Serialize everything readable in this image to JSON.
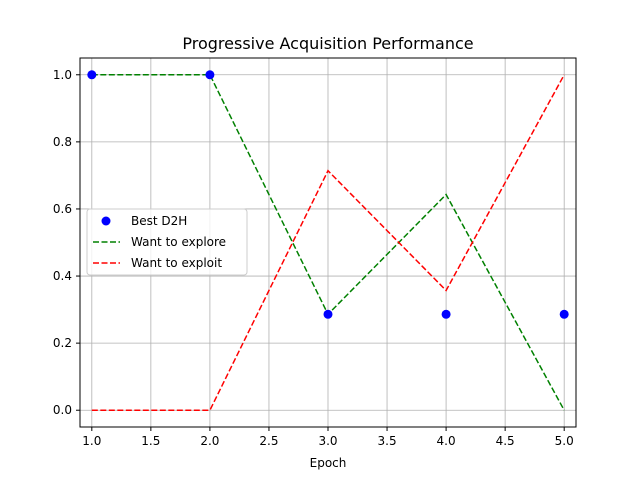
{
  "chart_data": {
    "type": "line",
    "title": "Progressive Acquisition Performance",
    "xlabel": "Epoch",
    "ylabel": "",
    "xlim": [
      0.9,
      5.1
    ],
    "ylim": [
      -0.05,
      1.05
    ],
    "x_ticks": [
      1.0,
      1.5,
      2.0,
      2.5,
      3.0,
      3.5,
      4.0,
      4.5,
      5.0
    ],
    "x_tick_labels": [
      "1.0",
      "1.5",
      "2.0",
      "2.5",
      "3.0",
      "3.5",
      "4.0",
      "4.5",
      "5.0"
    ],
    "y_ticks": [
      0.0,
      0.2,
      0.4,
      0.6,
      0.8,
      1.0
    ],
    "y_tick_labels": [
      "0.0",
      "0.2",
      "0.4",
      "0.6",
      "0.8",
      "1.0"
    ],
    "grid": true,
    "legend_position": "center-left",
    "x": [
      1,
      2,
      3,
      4,
      5
    ],
    "series": [
      {
        "name": "Best D2H",
        "style": "scatter",
        "color": "#0000ff",
        "values": [
          1.0,
          1.0,
          0.286,
          0.286,
          0.286
        ]
      },
      {
        "name": "Want to explore",
        "style": "dashed-line",
        "color": "#008000",
        "values": [
          1.0,
          1.0,
          0.286,
          0.643,
          0.0
        ]
      },
      {
        "name": "Want to exploit",
        "style": "dashed-line",
        "color": "#ff0000",
        "values": [
          0.0,
          0.0,
          0.714,
          0.357,
          1.0
        ]
      }
    ]
  }
}
